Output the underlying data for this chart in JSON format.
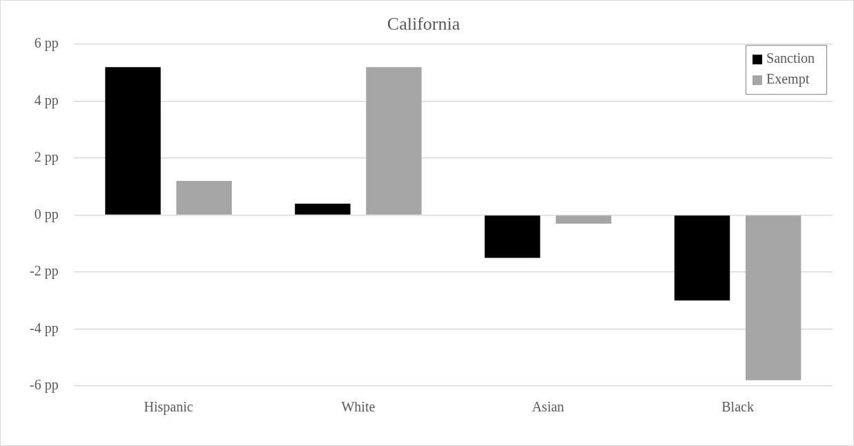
{
  "chart_data": {
    "type": "bar",
    "title": "California",
    "categories": [
      "Hispanic",
      "White",
      "Asian",
      "Black"
    ],
    "series": [
      {
        "name": "Sanction",
        "color": "#000000",
        "values": [
          5.2,
          0.4,
          -1.5,
          -3.0
        ]
      },
      {
        "name": "Exempt",
        "color": "#a5a5a5",
        "values": [
          1.2,
          5.2,
          -0.3,
          -5.8
        ]
      }
    ],
    "ylim": [
      -6,
      6
    ],
    "yticks": [
      {
        "value": -6,
        "label": "-6 pp"
      },
      {
        "value": -4,
        "label": "-4 pp"
      },
      {
        "value": -2,
        "label": "-2 pp"
      },
      {
        "value": 0,
        "label": "0 pp"
      },
      {
        "value": 2,
        "label": "2 pp"
      },
      {
        "value": 4,
        "label": "4 pp"
      },
      {
        "value": 6,
        "label": "6 pp"
      }
    ],
    "grid": "y",
    "legend": "top right"
  }
}
